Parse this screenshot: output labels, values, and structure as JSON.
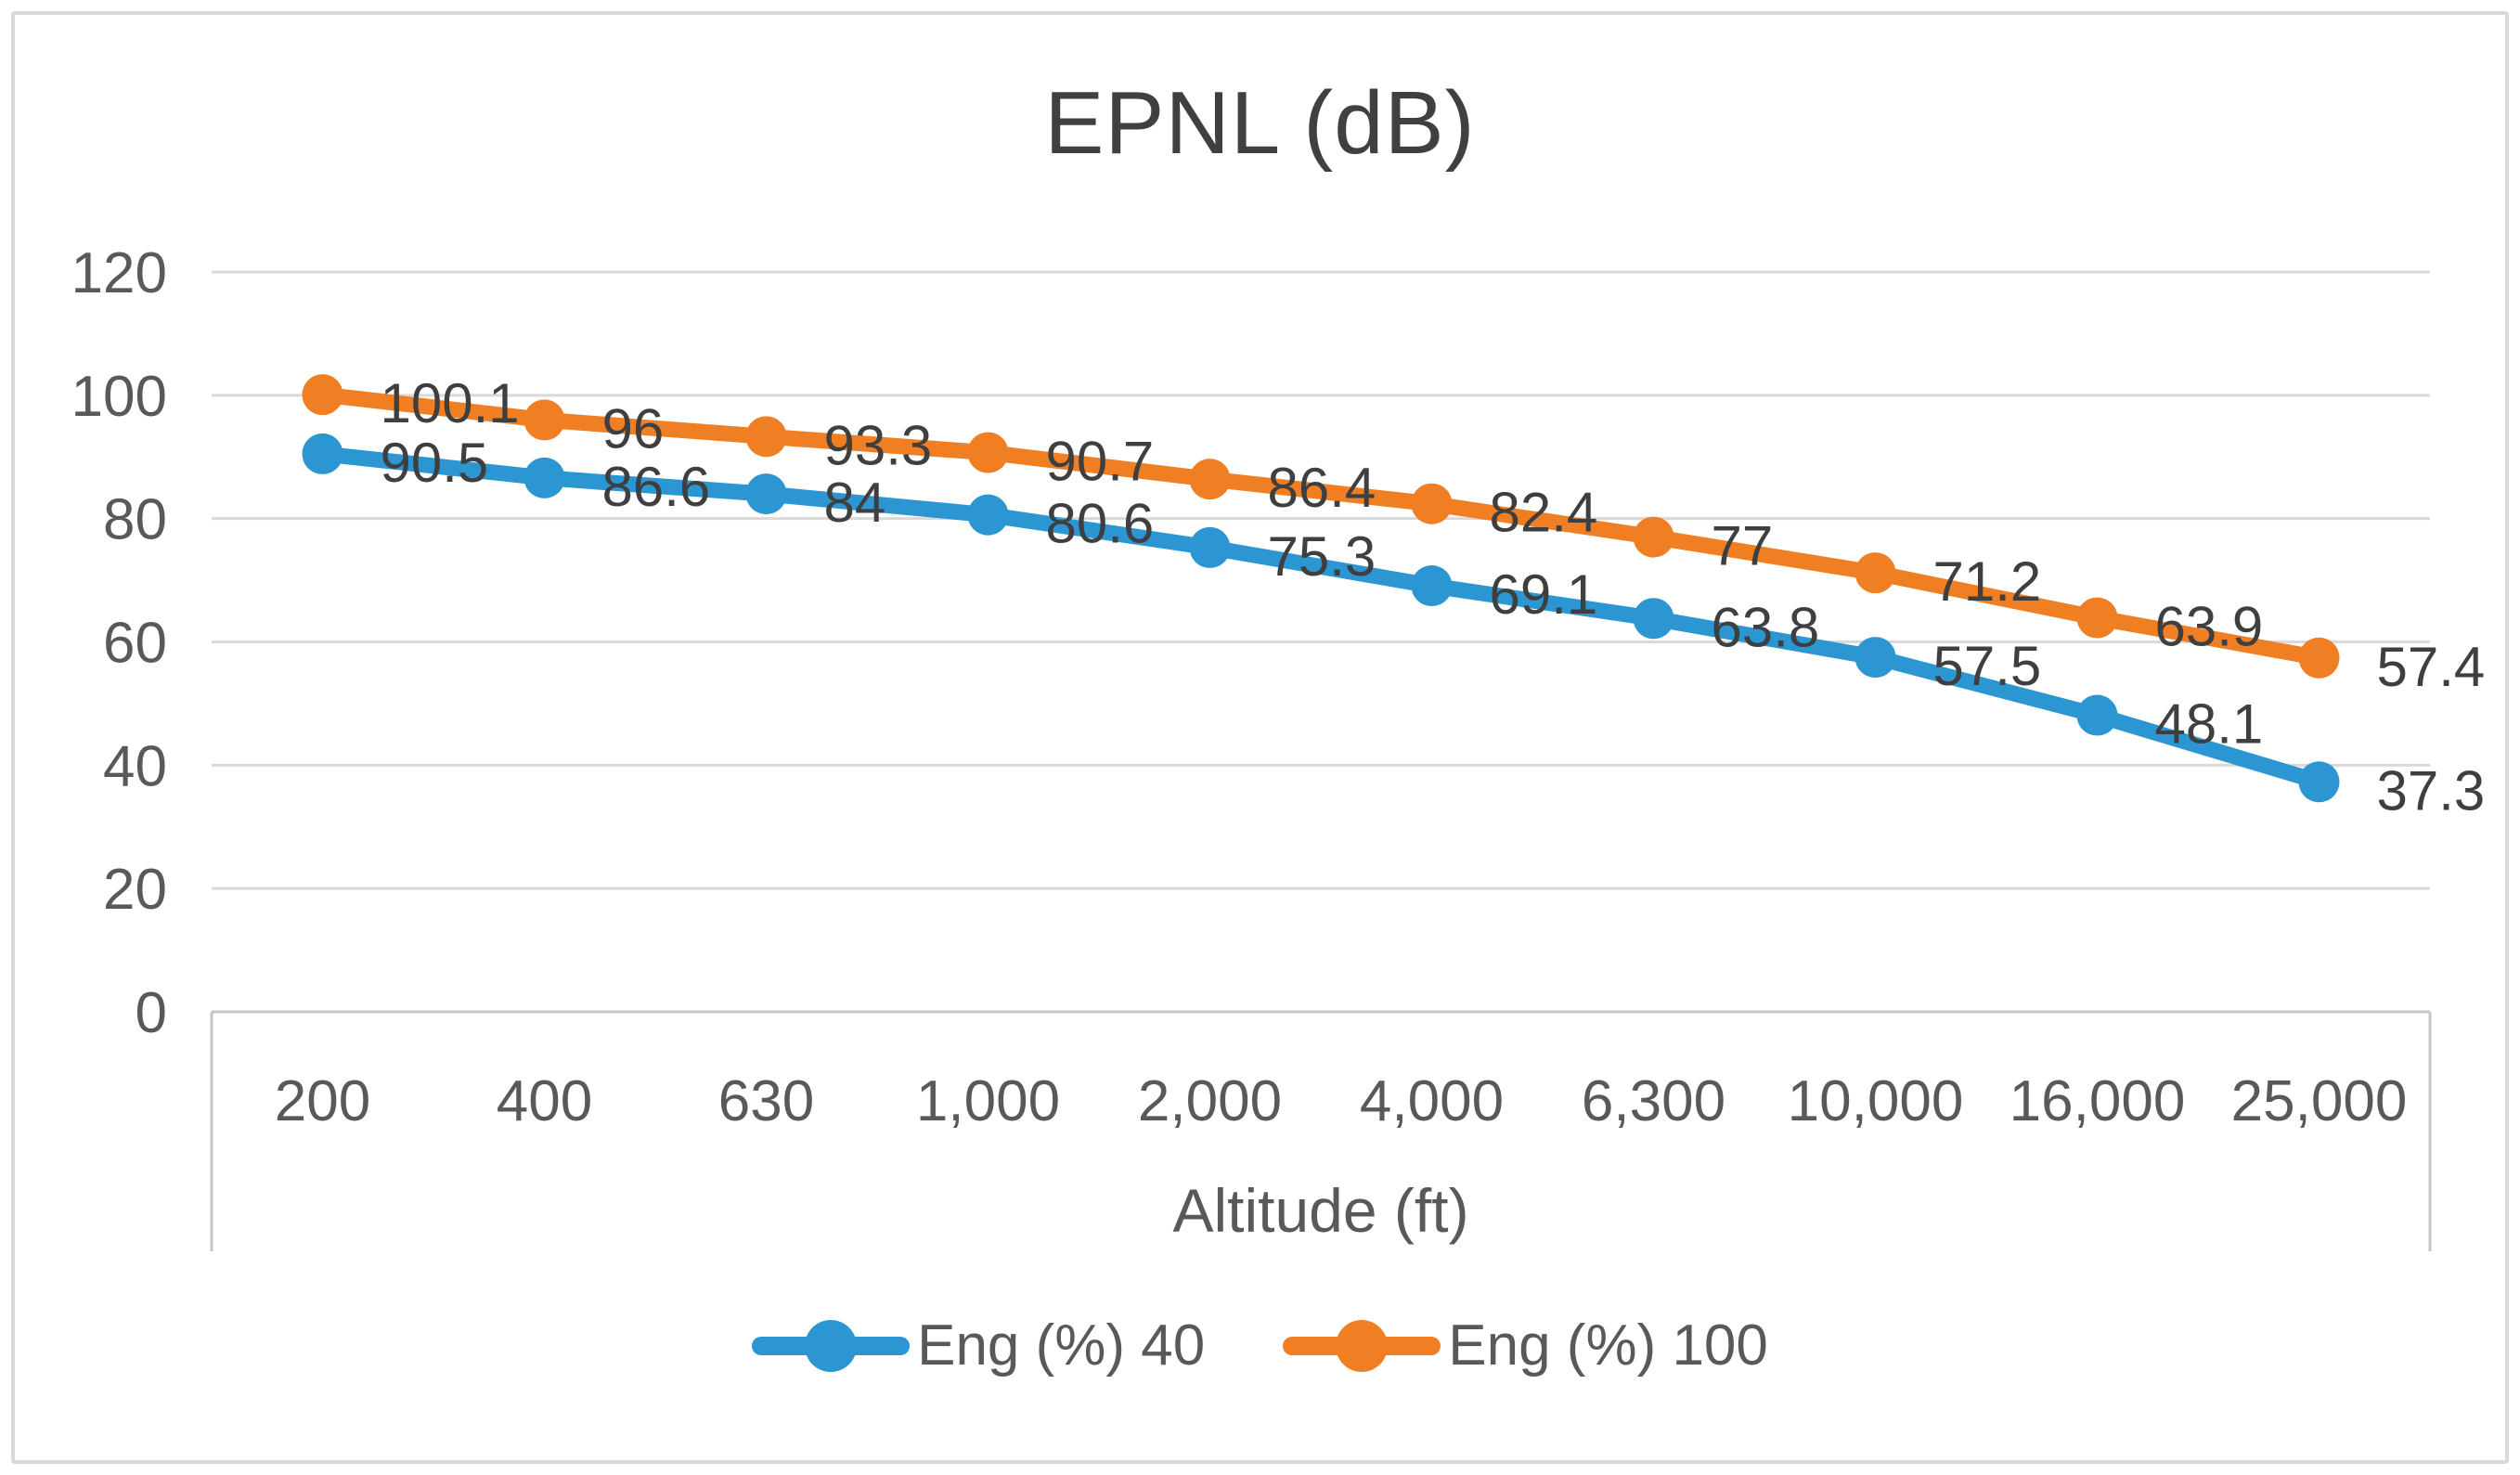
{
  "chart_data": {
    "type": "line",
    "title": "EPNL (dB)",
    "xlabel": "Altitude (ft)",
    "ylabel": "",
    "categories": [
      "200",
      "400",
      "630",
      "1,000",
      "2,000",
      "4,000",
      "6,300",
      "10,000",
      "16,000",
      "25,000"
    ],
    "ylim": [
      0,
      120
    ],
    "y_ticks": [
      0,
      20,
      40,
      60,
      80,
      100,
      120
    ],
    "grid": "horizontal",
    "legend_position": "bottom",
    "series": [
      {
        "name": "Eng (%) 40",
        "color": "#2b96d2",
        "values": [
          90.5,
          86.6,
          84,
          80.6,
          75.3,
          69.1,
          63.8,
          57.5,
          48.1,
          37.3
        ],
        "labels": [
          "90.5",
          "86.6",
          "84",
          "80.6",
          "75.3",
          "69.1",
          "63.8",
          "57.5",
          "48.1",
          "37.3"
        ]
      },
      {
        "name": "Eng (%) 100",
        "color": "#f07f24",
        "values": [
          100.1,
          96,
          93.3,
          90.7,
          86.4,
          82.4,
          77,
          71.2,
          63.9,
          57.4
        ],
        "labels": [
          "100.1",
          "96",
          "93.3",
          "90.7",
          "86.4",
          "82.4",
          "77",
          "71.2",
          "63.9",
          "57.4"
        ]
      }
    ],
    "colors": {
      "gridline": "#d9d9d9",
      "axis_line": "#c6c6c6",
      "tick_label_text": "#595959",
      "data_label_text": "#3f3f3f",
      "title_text": "#404040",
      "frame_border": "#d9d9d9"
    }
  }
}
